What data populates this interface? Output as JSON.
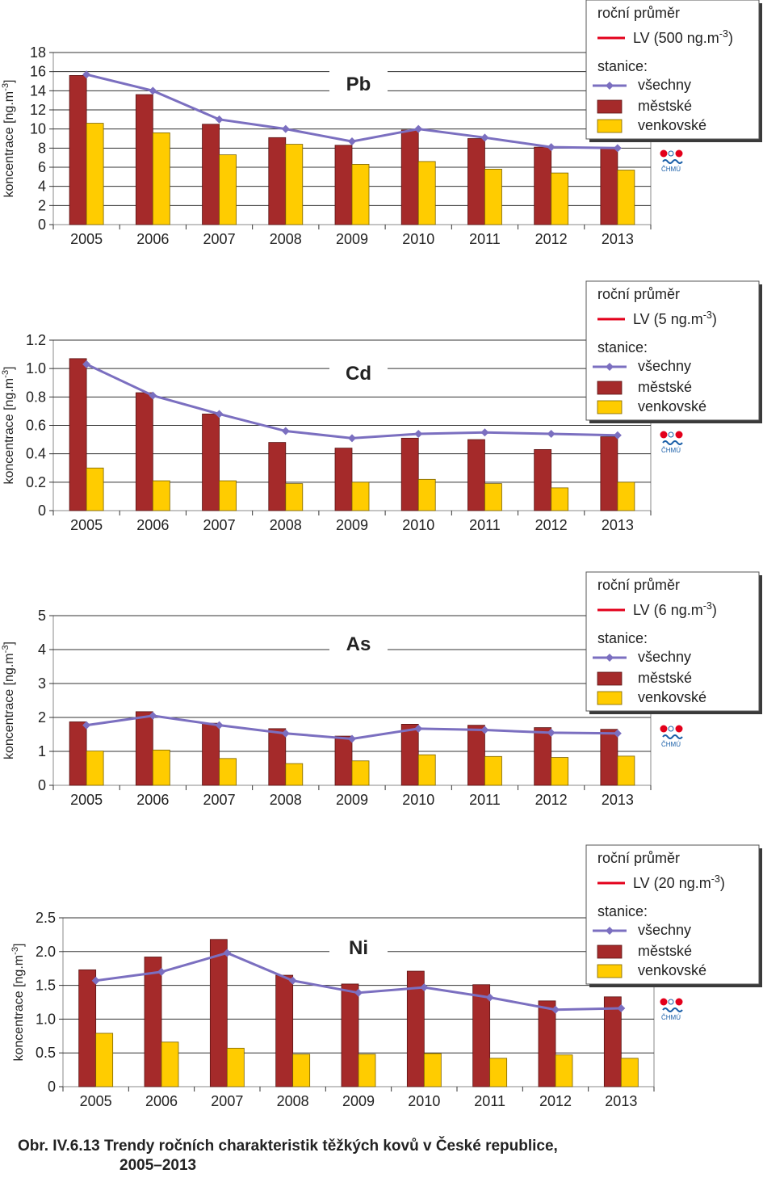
{
  "caption": {
    "line1": "Obr. IV.6.13  Trendy ročních charakteristik těžkých kovů v České republice,",
    "line2": "2005–2013"
  },
  "legend_common": {
    "header": "roční průměr",
    "stations": "stanice:",
    "all": "všechny",
    "urban": "městské",
    "rural": "venkovské"
  },
  "logo_text": "ČHMÚ",
  "colors": {
    "urban": "#a52a2a",
    "rural": "#ffcc00",
    "all": "#7b6fc0",
    "lv": "#e3001b"
  },
  "chart_data": [
    {
      "type": "bar",
      "title": "Pb",
      "ylabel": "koncentrace [ng.m-3]",
      "ylim": [
        0,
        18
      ],
      "yticks": [
        "0",
        "2",
        "4",
        "6",
        "8",
        "10",
        "12",
        "14",
        "16",
        "18"
      ],
      "lv_label": "LV (500 ng.m-3)",
      "categories": [
        "2005",
        "2006",
        "2007",
        "2008",
        "2009",
        "2010",
        "2011",
        "2012",
        "2013"
      ],
      "series": [
        {
          "name": "městské",
          "kind": "bar",
          "values": [
            15.6,
            13.6,
            10.5,
            9.1,
            8.3,
            9.9,
            9.0,
            8.1,
            8.0
          ]
        },
        {
          "name": "venkovské",
          "kind": "bar",
          "values": [
            10.6,
            9.6,
            7.3,
            8.4,
            6.3,
            6.6,
            5.8,
            5.4,
            5.7
          ]
        },
        {
          "name": "všechny",
          "kind": "line",
          "values": [
            15.7,
            14.0,
            11.0,
            10.0,
            8.7,
            10.0,
            9.1,
            8.1,
            8.0
          ]
        }
      ]
    },
    {
      "type": "bar",
      "title": "Cd",
      "ylabel": "koncentrace [ng.m-3]",
      "ylim": [
        0,
        1.2
      ],
      "yticks": [
        "0",
        "0.2",
        "0.4",
        "0.6",
        "0.8",
        "1.0",
        "1.2"
      ],
      "lv_label": "LV (5 ng.m-3)",
      "categories": [
        "2005",
        "2006",
        "2007",
        "2008",
        "2009",
        "2010",
        "2011",
        "2012",
        "2013"
      ],
      "series": [
        {
          "name": "městské",
          "kind": "bar",
          "values": [
            1.07,
            0.83,
            0.68,
            0.48,
            0.44,
            0.51,
            0.5,
            0.43,
            0.52
          ]
        },
        {
          "name": "venkovské",
          "kind": "bar",
          "values": [
            0.3,
            0.21,
            0.21,
            0.19,
            0.2,
            0.22,
            0.19,
            0.16,
            0.2
          ]
        },
        {
          "name": "všechny",
          "kind": "line",
          "values": [
            1.03,
            0.81,
            0.68,
            0.56,
            0.51,
            0.54,
            0.55,
            0.54,
            0.53
          ]
        }
      ]
    },
    {
      "type": "bar",
      "title": "As",
      "ylabel": "koncentrace [ng.m-3]",
      "ylim": [
        0,
        5
      ],
      "yticks": [
        "0",
        "1",
        "2",
        "3",
        "4",
        "5"
      ],
      "lv_label": "LV (6 ng.m-3)",
      "categories": [
        "2005",
        "2006",
        "2007",
        "2008",
        "2009",
        "2010",
        "2011",
        "2012",
        "2013"
      ],
      "series": [
        {
          "name": "městské",
          "kind": "bar",
          "values": [
            1.87,
            2.17,
            1.83,
            1.67,
            1.45,
            1.8,
            1.77,
            1.7,
            1.65
          ]
        },
        {
          "name": "venkovské",
          "kind": "bar",
          "values": [
            1.01,
            1.04,
            0.79,
            0.64,
            0.72,
            0.9,
            0.85,
            0.82,
            0.86
          ]
        },
        {
          "name": "všechny",
          "kind": "line",
          "values": [
            1.77,
            2.05,
            1.77,
            1.53,
            1.37,
            1.67,
            1.63,
            1.55,
            1.53
          ]
        }
      ]
    },
    {
      "type": "bar",
      "title": "Ni",
      "ylabel": "koncentrace [ng.m-3]",
      "ylim": [
        0,
        2.5
      ],
      "yticks": [
        "0",
        "0.5",
        "1.0",
        "1.5",
        "2.0",
        "2.5"
      ],
      "lv_label": "LV (20 ng.m-3)",
      "categories": [
        "2005",
        "2006",
        "2007",
        "2008",
        "2009",
        "2010",
        "2011",
        "2012",
        "2013"
      ],
      "series": [
        {
          "name": "městské",
          "kind": "bar",
          "values": [
            1.73,
            1.92,
            2.18,
            1.65,
            1.52,
            1.71,
            1.51,
            1.27,
            1.33
          ]
        },
        {
          "name": "venkovské",
          "kind": "bar",
          "values": [
            0.79,
            0.66,
            0.57,
            0.48,
            0.48,
            0.49,
            0.42,
            0.47,
            0.42
          ]
        },
        {
          "name": "všechny",
          "kind": "line",
          "values": [
            1.57,
            1.7,
            1.98,
            1.57,
            1.39,
            1.47,
            1.32,
            1.14,
            1.16
          ]
        }
      ]
    }
  ]
}
